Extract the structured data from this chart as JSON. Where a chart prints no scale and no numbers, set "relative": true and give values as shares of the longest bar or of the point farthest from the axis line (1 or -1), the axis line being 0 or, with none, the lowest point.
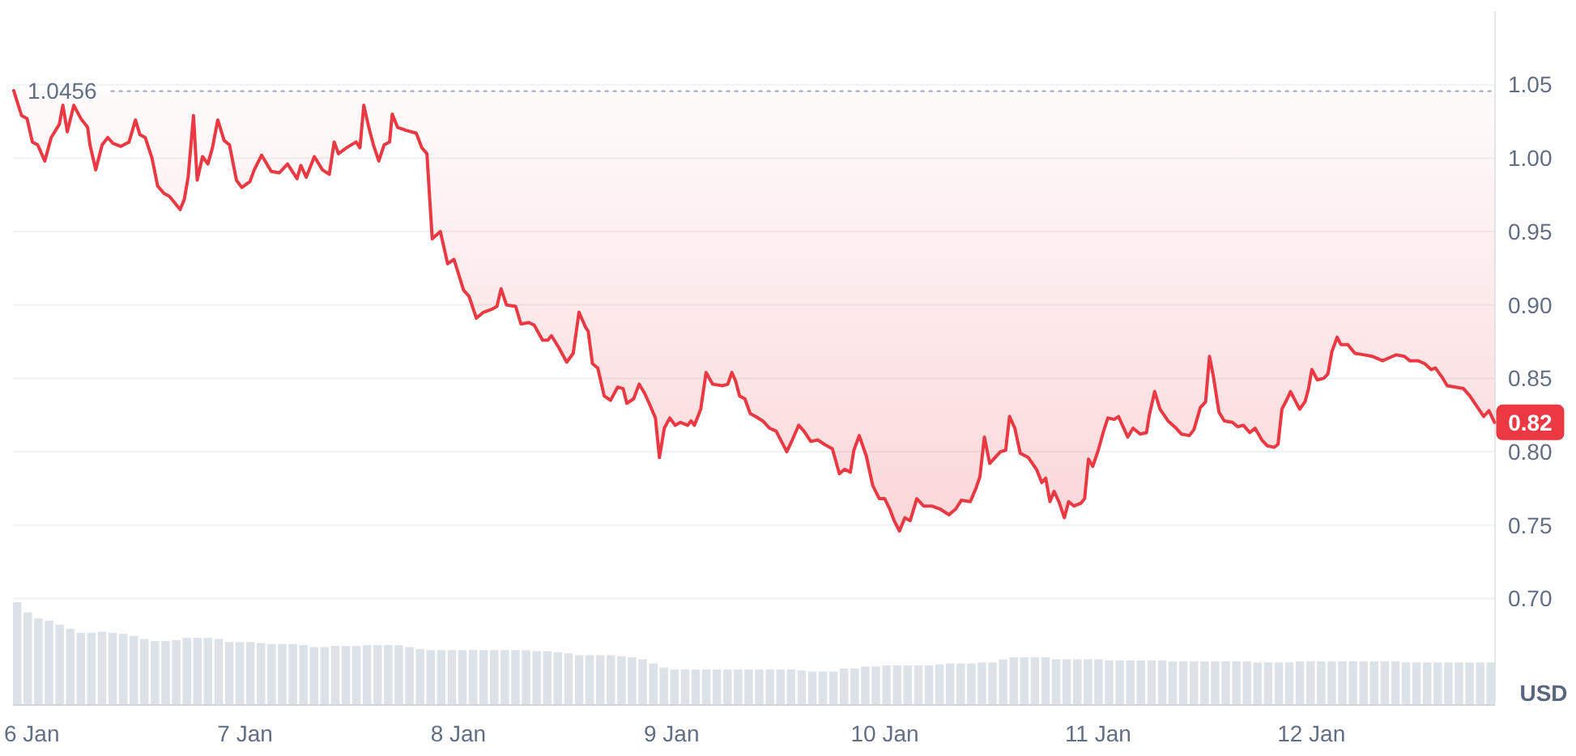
{
  "chart_data": [
    {
      "type": "line",
      "xlim": [
        "--01-05T21:53",
        "--01-12T20:40"
      ],
      "ylim": [
        0.628,
        1.1
      ],
      "xticks": [
        {
          "value": "--01-06",
          "label": "6 Jan"
        },
        {
          "value": "--01-07",
          "label": "7 Jan"
        },
        {
          "value": "--01-08",
          "label": "8 Jan"
        },
        {
          "value": "--01-09",
          "label": "9 Jan"
        },
        {
          "value": "--01-10",
          "label": "10 Jan"
        },
        {
          "value": "--01-11",
          "label": "11 Jan"
        },
        {
          "value": "--01-12",
          "label": "12 Jan"
        }
      ],
      "yticks": [
        {
          "value": 0.7,
          "label": "0.70"
        },
        0.75,
        {
          "value": 0.8,
          "label": "0.80"
        },
        0.85,
        {
          "value": 0.9,
          "label": "0.90"
        },
        0.95,
        {
          "value": 1,
          "label": "1.00"
        },
        1.05
      ],
      "ylabel": "USD",
      "grid": "y",
      "ref_lines": [
        {
          "axis": "y",
          "value": 1.0456,
          "label": "1.0456",
          "line_style": "dotted",
          "color": "#a6b0c3"
        }
      ],
      "annotations": [
        {
          "text": "0.82",
          "x": "--01-12T20:37",
          "y": 0.82
        }
      ],
      "x": [
        "--01-05T21:58",
        "--01-05T22:51",
        "--01-05T23:28",
        "--01-06T00:04",
        "--01-06T00:40",
        "--01-06T01:28",
        "--01-06T02:11",
        "--01-06T03:06",
        "--01-06T03:30",
        "--01-06T04:00",
        "--01-06T04:44",
        "--01-06T05:31",
        "--01-06T06:17",
        "--01-06T06:33",
        "--01-06T07:12",
        "--01-06T07:55",
        "--01-06T08:33",
        "--01-06T09:09",
        "--01-06T10:02",
        "--01-06T10:57",
        "--01-06T11:40",
        "--01-06T12:10",
        "--01-06T12:46",
        "--01-06T13:32",
        "--01-06T14:10",
        "--01-06T14:53",
        "--01-06T15:29",
        "--01-06T16:42",
        "--01-06T17:10",
        "--01-06T17:36",
        "--01-06T18:12",
        "--01-06T18:37",
        "--01-06T19:13",
        "--01-06T19:49",
        "--01-06T20:20",
        "--01-06T20:56",
        "--01-06T21:39",
        "--01-06T22:15",
        "--01-06T23:02",
        "--01-06T23:38",
        "--01-07T00:33",
        "--01-07T01:02",
        "--01-07T01:52",
        "--01-07T02:57",
        "--01-07T03:52",
        "--01-07T04:47",
        "--01-07T05:51",
        "--01-07T06:17",
        "--01-07T06:53",
        "--01-07T07:48",
        "--01-07T08:43",
        "--01-07T09:29",
        "--01-07T10:02",
        "--01-07T10:31",
        "--01-07T11:25",
        "--01-07T12:30",
        "--01-07T12:56",
        "--01-07T13:22",
        "--01-07T13:58",
        "--01-07T14:27",
        "--01-07T15:03",
        "--01-07T15:39",
        "--01-07T16:16",
        "--01-07T16:34",
        "--01-07T17:10",
        "--01-07T18:04",
        "--01-07T19:16",
        "--01-07T19:54",
        "--01-07T20:28",
        "--01-07T21:04",
        "--01-07T21:59",
        "--01-07T22:48",
        "--01-07T23:31",
        "--01-08T00:36",
        "--01-08T01:12",
        "--01-08T02:02",
        "--01-08T02:50",
        "--01-08T03:45",
        "--01-08T04:21",
        "--01-08T04:49",
        "--01-08T05:25",
        "--01-08T06:27",
        "--01-08T07:03",
        "--01-08T07:58",
        "--01-08T08:34",
        "--01-08T09:29",
        "--01-08T10:05",
        "--01-08T10:29",
        "--01-08T11:18",
        "--01-08T12:12",
        "--01-08T12:56",
        "--01-08T13:35",
        "--01-08T14:18",
        "--01-08T14:37",
        "--01-08T15:06",
        "--01-08T15:42",
        "--01-08T16:25",
        "--01-08T17:08",
        "--01-08T17:56",
        "--01-08T18:33",
        "--01-08T18:58",
        "--01-08T19:44",
        "--01-08T20:21",
        "--01-08T20:57",
        "--01-08T21:33",
        "--01-08T22:11",
        "--01-08T22:38",
        "--01-08T23:11",
        "--01-08T23:48",
        "--01-09T00:24",
        "--01-09T01:00",
        "--01-09T01:48",
        "--01-09T02:12",
        "--01-09T02:34",
        "--01-09T03:17",
        "--01-09T03:53",
        "--01-09T04:38",
        "--01-09T05:43",
        "--01-09T06:20",
        "--01-09T06:47",
        "--01-09T07:13",
        "--01-09T07:39",
        "--01-09T08:15",
        "--01-09T08:51",
        "--01-09T09:27",
        "--01-09T10:15",
        "--01-09T11:02",
        "--01-09T11:46",
        "--01-09T12:22",
        "--01-09T12:58",
        "--01-09T13:35",
        "--01-09T14:18",
        "--01-09T14:54",
        "--01-09T15:40",
        "--01-09T16:28",
        "--01-09T17:12",
        "--01-09T18:06",
        "--01-09T18:53",
        "--01-09T19:29",
        "--01-09T20:07",
        "--01-09T20:31",
        "--01-09T21:07",
        "--01-09T21:55",
        "--01-09T22:38",
        "--01-09T23:23",
        "--01-09T23:59",
        "--01-10T00:33",
        "--01-10T01:03",
        "--01-10T01:39",
        "--01-10T02:15",
        "--01-10T02:51",
        "--01-10T03:36",
        "--01-10T04:22",
        "--01-10T05:17",
        "--01-10T06:12",
        "--01-10T07:13",
        "--01-10T07:59",
        "--01-10T08:37",
        "--01-10T09:37",
        "--01-10T10:15",
        "--01-10T10:42",
        "--01-10T11:12",
        "--01-10T11:48",
        "--01-10T12:24",
        "--01-10T13:00",
        "--01-10T13:36",
        "--01-10T14:02",
        "--01-10T14:38",
        "--01-10T15:14",
        "--01-10T16:09",
        "--01-10T17:04",
        "--01-10T17:40",
        "--01-10T18:06",
        "--01-10T18:35",
        "--01-10T19:03",
        "--01-10T19:35",
        "--01-10T20:12",
        "--01-10T20:41",
        "--01-10T21:17",
        "--01-10T22:05",
        "--01-10T22:29",
        "--01-10T22:55",
        "--01-10T23:24",
        "--01-11T00:01",
        "--01-11T00:37",
        "--01-11T01:06",
        "--01-11T01:49",
        "--01-11T02:18",
        "--01-11T02:44",
        "--01-11T03:20",
        "--01-11T03:56",
        "--01-11T04:44",
        "--01-11T05:27",
        "--01-11T05:46",
        "--01-11T06:22",
        "--01-11T06:58",
        "--01-11T07:52",
        "--01-11T08:47",
        "--01-11T09:23",
        "--01-11T10:16",
        "--01-11T10:47",
        "--01-11T11:30",
        "--01-11T12:06",
        "--01-11T12:32",
        "--01-11T12:59",
        "--01-11T13:36",
        "--01-11T14:12",
        "--01-11T15:07",
        "--01-11T15:43",
        "--01-11T16:21",
        "--01-11T17:04",
        "--01-11T17:40",
        "--01-11T18:26",
        "--01-11T19:03",
        "--01-11T19:49",
        "--01-11T20:15",
        "--01-11T20:41",
        "--01-11T21:17",
        "--01-11T21:39",
        "--01-11T22:15",
        "--01-11T22:41",
        "--01-11T23:17",
        "--01-11T23:41",
        "--01-12T00:03",
        "--01-12T00:40",
        "--01-12T01:24",
        "--01-12T01:52",
        "--01-12T02:18",
        "--01-12T02:54",
        "--01-12T03:19",
        "--01-12T04:06",
        "--01-12T04:54",
        "--01-12T05:56",
        "--01-12T06:50",
        "--01-12T08:01",
        "--01-12T08:46",
        "--01-12T09:33",
        "--01-12T10:28",
        "--01-12T11:04",
        "--01-12T11:59",
        "--01-12T12:45",
        "--01-12T13:28",
        "--01-12T13:58",
        "--01-12T14:41",
        "--01-12T15:17",
        "--01-12T16:12",
        "--01-12T17:07",
        "--01-12T17:50",
        "--01-12T18:37",
        "--01-12T19:24",
        "--01-12T19:59",
        "--01-12T20:37"
      ],
      "series": [
        {
          "color": "#ea3943",
          "values": [
            1.046,
            1.029,
            1.027,
            1.011,
            1.009,
            0.998,
            1.014,
            1.023,
            1.036,
            1.018,
            1.036,
            1.027,
            1.021,
            1.009,
            0.992,
            1.009,
            1.014,
            1.01,
            1.008,
            1.011,
            1.026,
            1.016,
            1.014,
            1.0,
            0.981,
            0.976,
            0.974,
            0.965,
            0.972,
            0.987,
            1.029,
            0.985,
            1.001,
            0.996,
            1.007,
            1.026,
            1.012,
            1.009,
            0.985,
            0.98,
            0.984,
            0.992,
            1.002,
            0.991,
            0.99,
            0.996,
            0.986,
            0.995,
            0.987,
            1.001,
            0.992,
            0.989,
            1.011,
            1.003,
            1.007,
            1.011,
            1.007,
            1.036,
            1.02,
            1.009,
            0.998,
            1.009,
            1.011,
            1.03,
            1.021,
            1.019,
            1.017,
            1.007,
            1.003,
            0.945,
            0.95,
            0.928,
            0.931,
            0.91,
            0.906,
            0.891,
            0.895,
            0.897,
            0.899,
            0.911,
            0.9,
            0.899,
            0.887,
            0.888,
            0.886,
            0.876,
            0.876,
            0.879,
            0.871,
            0.861,
            0.867,
            0.895,
            0.885,
            0.882,
            0.86,
            0.857,
            0.838,
            0.835,
            0.844,
            0.843,
            0.833,
            0.836,
            0.846,
            0.84,
            0.832,
            0.823,
            0.796,
            0.816,
            0.823,
            0.818,
            0.82,
            0.818,
            0.821,
            0.818,
            0.829,
            0.854,
            0.846,
            0.845,
            0.846,
            0.854,
            0.848,
            0.838,
            0.836,
            0.826,
            0.824,
            0.821,
            0.816,
            0.814,
            0.807,
            0.8,
            0.808,
            0.818,
            0.814,
            0.807,
            0.808,
            0.805,
            0.802,
            0.785,
            0.788,
            0.786,
            0.801,
            0.811,
            0.797,
            0.777,
            0.768,
            0.768,
            0.761,
            0.753,
            0.746,
            0.755,
            0.753,
            0.768,
            0.763,
            0.763,
            0.761,
            0.757,
            0.761,
            0.767,
            0.766,
            0.775,
            0.783,
            0.81,
            0.792,
            0.796,
            0.8,
            0.801,
            0.824,
            0.816,
            0.799,
            0.796,
            0.788,
            0.779,
            0.782,
            0.766,
            0.773,
            0.766,
            0.755,
            0.766,
            0.763,
            0.765,
            0.768,
            0.795,
            0.79,
            0.801,
            0.814,
            0.823,
            0.822,
            0.824,
            0.818,
            0.81,
            0.816,
            0.812,
            0.813,
            0.825,
            0.841,
            0.829,
            0.821,
            0.816,
            0.812,
            0.811,
            0.815,
            0.83,
            0.834,
            0.865,
            0.851,
            0.827,
            0.821,
            0.82,
            0.817,
            0.818,
            0.813,
            0.816,
            0.808,
            0.804,
            0.803,
            0.805,
            0.829,
            0.836,
            0.841,
            0.834,
            0.829,
            0.834,
            0.843,
            0.856,
            0.849,
            0.85,
            0.853,
            0.868,
            0.878,
            0.873,
            0.873,
            0.867,
            0.866,
            0.865,
            0.862,
            0.864,
            0.866,
            0.865,
            0.862,
            0.862,
            0.86,
            0.856,
            0.857,
            0.851,
            0.845,
            0.844,
            0.843,
            0.838,
            0.831,
            0.824,
            0.828,
            0.82
          ],
          "lower": [
            1.046,
            1.029,
            1.027,
            1.011,
            1.009,
            0.998,
            1.014,
            1.023,
            1.036,
            1.018,
            1.036,
            1.027,
            1.021,
            1.009,
            0.992,
            1.009,
            1.014,
            1.01,
            1.008,
            1.011,
            1.026,
            1.016,
            1.014,
            1.0,
            0.981,
            0.976,
            0.974,
            0.965,
            0.972,
            0.987,
            1.029,
            0.985,
            1.001,
            0.996,
            1.007,
            1.026,
            1.012,
            1.009,
            0.985,
            0.98,
            0.984,
            0.992,
            1.002,
            0.991,
            0.99,
            0.996,
            0.986,
            0.995,
            0.987,
            1.001,
            0.992,
            0.989,
            1.011,
            1.003,
            1.007,
            1.011,
            1.007,
            1.036,
            1.02,
            1.009,
            0.998,
            1.009,
            1.011,
            1.03,
            1.021,
            1.019,
            1.017,
            1.007,
            1.003,
            0.945,
            0.95,
            0.928,
            0.931,
            0.91,
            0.906,
            0.891,
            0.895,
            0.897,
            0.899,
            0.911,
            0.9,
            0.899,
            0.887,
            0.888,
            0.886,
            0.876,
            0.876,
            0.879,
            0.871,
            0.861,
            0.867,
            0.895,
            0.885,
            0.882,
            0.86,
            0.857,
            0.838,
            0.835,
            0.844,
            0.843,
            0.833,
            0.836,
            0.846,
            0.84,
            0.832,
            0.823,
            0.796,
            0.816,
            0.823,
            0.818,
            0.82,
            0.818,
            0.821,
            0.818,
            0.829,
            0.854,
            0.846,
            0.845,
            0.846,
            0.854,
            0.848,
            0.838,
            0.836,
            0.826,
            0.824,
            0.821,
            0.816,
            0.814,
            0.807,
            0.8,
            0.808,
            0.818,
            0.814,
            0.807,
            0.808,
            0.805,
            0.802,
            0.785,
            0.788,
            0.786,
            0.801,
            0.811,
            0.797,
            0.777,
            0.768,
            0.768,
            0.761,
            0.753,
            0.746,
            0.755,
            0.753,
            0.768,
            0.763,
            0.763,
            0.761,
            0.757,
            0.761,
            0.767,
            0.766,
            0.775,
            0.783,
            0.81,
            0.792,
            0.796,
            0.8,
            0.801,
            0.824,
            0.816,
            0.799,
            0.796,
            0.788,
            0.779,
            0.782,
            0.766,
            0.773,
            0.766,
            0.755,
            0.766,
            0.763,
            0.765,
            0.768,
            0.795,
            0.79,
            0.801,
            0.814,
            0.823,
            0.822,
            0.824,
            0.818,
            0.81,
            0.816,
            0.812,
            0.813,
            0.825,
            0.841,
            0.829,
            0.821,
            0.816,
            0.812,
            0.811,
            0.815,
            0.83,
            0.834,
            0.865,
            0.851,
            0.827,
            0.821,
            0.82,
            0.817,
            0.818,
            0.813,
            0.816,
            0.808,
            0.804,
            0.803,
            0.805,
            0.829,
            0.836,
            0.841,
            0.834,
            0.829,
            0.834,
            0.843,
            0.856,
            0.849,
            0.85,
            0.853,
            0.868,
            0.878,
            0.873,
            0.873,
            0.867,
            0.866,
            0.865,
            0.862,
            0.864,
            0.866,
            0.865,
            0.862,
            0.862,
            0.86,
            0.856,
            0.857,
            0.851,
            0.845,
            0.844,
            0.843,
            0.838,
            0.831,
            0.824,
            0.828,
            0.82
          ],
          "upper": [
            1.0456,
            1.0456,
            1.0456,
            1.0456,
            1.0456,
            1.0456,
            1.0456,
            1.0456,
            1.0456,
            1.0456,
            1.0456,
            1.0456,
            1.0456,
            1.0456,
            1.0456,
            1.0456,
            1.0456,
            1.0456,
            1.0456,
            1.0456,
            1.0456,
            1.0456,
            1.0456,
            1.0456,
            1.0456,
            1.0456,
            1.0456,
            1.0456,
            1.0456,
            1.0456,
            1.0456,
            1.0456,
            1.0456,
            1.0456,
            1.0456,
            1.0456,
            1.0456,
            1.0456,
            1.0456,
            1.0456,
            1.0456,
            1.0456,
            1.0456,
            1.0456,
            1.0456,
            1.0456,
            1.0456,
            1.0456,
            1.0456,
            1.0456,
            1.0456,
            1.0456,
            1.0456,
            1.0456,
            1.0456,
            1.0456,
            1.0456,
            1.0456,
            1.0456,
            1.0456,
            1.0456,
            1.0456,
            1.0456,
            1.0456,
            1.0456,
            1.0456,
            1.0456,
            1.0456,
            1.0456,
            1.0456,
            1.0456,
            1.0456,
            1.0456,
            1.0456,
            1.0456,
            1.0456,
            1.0456,
            1.0456,
            1.0456,
            1.0456,
            1.0456,
            1.0456,
            1.0456,
            1.0456,
            1.0456,
            1.0456,
            1.0456,
            1.0456,
            1.0456,
            1.0456,
            1.0456,
            1.0456,
            1.0456,
            1.0456,
            1.0456,
            1.0456,
            1.0456,
            1.0456,
            1.0456,
            1.0456,
            1.0456,
            1.0456,
            1.0456,
            1.0456,
            1.0456,
            1.0456,
            1.0456,
            1.0456,
            1.0456,
            1.0456,
            1.0456,
            1.0456,
            1.0456,
            1.0456,
            1.0456,
            1.0456,
            1.0456,
            1.0456,
            1.0456,
            1.0456,
            1.0456,
            1.0456,
            1.0456,
            1.0456,
            1.0456,
            1.0456,
            1.0456,
            1.0456,
            1.0456,
            1.0456,
            1.0456,
            1.0456,
            1.0456,
            1.0456,
            1.0456,
            1.0456,
            1.0456,
            1.0456,
            1.0456,
            1.0456,
            1.0456,
            1.0456,
            1.0456,
            1.0456,
            1.0456,
            1.0456,
            1.0456,
            1.0456,
            1.0456,
            1.0456,
            1.0456,
            1.0456,
            1.0456,
            1.0456,
            1.0456,
            1.0456,
            1.0456,
            1.0456,
            1.0456,
            1.0456,
            1.0456,
            1.0456,
            1.0456,
            1.0456,
            1.0456,
            1.0456,
            1.0456,
            1.0456,
            1.0456,
            1.0456,
            1.0456,
            1.0456,
            1.0456,
            1.0456,
            1.0456,
            1.0456,
            1.0456,
            1.0456,
            1.0456,
            1.0456,
            1.0456,
            1.0456,
            1.0456,
            1.0456,
            1.0456,
            1.0456,
            1.0456,
            1.0456,
            1.0456,
            1.0456,
            1.0456,
            1.0456,
            1.0456,
            1.0456,
            1.0456,
            1.0456,
            1.0456,
            1.0456,
            1.0456,
            1.0456,
            1.0456,
            1.0456,
            1.0456,
            1.0456,
            1.0456,
            1.0456,
            1.0456,
            1.0456,
            1.0456,
            1.0456,
            1.0456,
            1.0456,
            1.0456,
            1.0456,
            1.0456,
            1.0456,
            1.0456,
            1.0456,
            1.0456,
            1.0456,
            1.0456,
            1.0456,
            1.0456,
            1.0456,
            1.0456,
            1.0456,
            1.0456,
            1.0456,
            1.0456,
            1.0456,
            1.0456,
            1.0456,
            1.0456,
            1.0456,
            1.0456,
            1.0456,
            1.0456,
            1.0456,
            1.0456,
            1.0456,
            1.0456,
            1.0456,
            1.0456,
            1.0456,
            1.0456,
            1.0456,
            1.0456,
            1.0456,
            1.0456,
            1.0456,
            1.0456,
            1.0456
          ]
        }
      ]
    },
    {
      "type": "bar",
      "relative": true,
      "color": "#dde2e9",
      "categories": [
        null,
        null,
        null,
        null,
        null,
        null,
        null,
        null,
        null,
        null,
        null,
        null,
        null,
        null,
        null,
        null,
        null,
        null,
        null,
        null,
        null,
        null,
        null,
        null,
        null,
        null,
        null,
        null,
        null,
        null,
        null,
        null,
        null,
        null,
        null,
        null,
        null,
        null,
        null,
        null,
        null,
        null,
        null,
        null,
        null,
        null,
        null,
        null,
        null,
        null,
        null,
        null,
        null,
        null,
        null,
        null,
        null,
        null,
        null,
        null,
        null,
        null,
        null,
        null,
        null,
        null,
        null,
        null,
        null,
        null,
        null,
        null,
        null,
        null,
        null,
        null,
        null,
        null,
        null,
        null,
        null,
        null,
        null,
        null,
        null,
        null,
        null,
        null,
        null,
        null,
        null,
        null,
        null,
        null,
        null,
        null,
        null,
        null,
        null,
        null,
        null,
        null,
        null,
        null,
        null,
        null,
        null,
        null,
        null,
        null,
        null,
        null,
        null,
        null,
        null,
        null,
        null,
        null,
        null,
        null,
        null,
        null,
        null,
        null,
        null,
        null,
        null,
        null,
        null,
        null,
        null,
        null,
        null,
        null,
        null,
        null,
        null,
        null,
        null,
        null
      ],
      "values": [
        1,
        0.9,
        0.84,
        0.82,
        0.78,
        0.74,
        0.7,
        0.7,
        0.71,
        0.7,
        0.69,
        0.67,
        0.64,
        0.62,
        0.62,
        0.63,
        0.65,
        0.65,
        0.65,
        0.64,
        0.61,
        0.61,
        0.61,
        0.6,
        0.59,
        0.59,
        0.59,
        0.58,
        0.56,
        0.56,
        0.57,
        0.57,
        0.57,
        0.58,
        0.58,
        0.58,
        0.58,
        0.56,
        0.54,
        0.53,
        0.53,
        0.53,
        0.53,
        0.53,
        0.53,
        0.53,
        0.53,
        0.53,
        0.53,
        0.52,
        0.52,
        0.51,
        0.5,
        0.48,
        0.48,
        0.48,
        0.48,
        0.47,
        0.46,
        0.44,
        0.4,
        0.36,
        0.34,
        0.34,
        0.34,
        0.34,
        0.34,
        0.34,
        0.34,
        0.34,
        0.34,
        0.34,
        0.34,
        0.34,
        0.33,
        0.32,
        0.32,
        0.32,
        0.35,
        0.35,
        0.37,
        0.37,
        0.38,
        0.38,
        0.38,
        0.38,
        0.38,
        0.39,
        0.4,
        0.4,
        0.4,
        0.41,
        0.41,
        0.44,
        0.46,
        0.46,
        0.46,
        0.46,
        0.44,
        0.44,
        0.44,
        0.44,
        0.44,
        0.43,
        0.43,
        0.43,
        0.43,
        0.43,
        0.43,
        0.42,
        0.42,
        0.42,
        0.42,
        0.42,
        0.42,
        0.42,
        0.42,
        0.41,
        0.41,
        0.41,
        0.41,
        0.42,
        0.42,
        0.42,
        0.42,
        0.42,
        0.42,
        0.42,
        0.42,
        0.42,
        0.42,
        0.41,
        0.41,
        0.41,
        0.41,
        0.41,
        0.41,
        0.41,
        0.41,
        0.41
      ]
    }
  ]
}
